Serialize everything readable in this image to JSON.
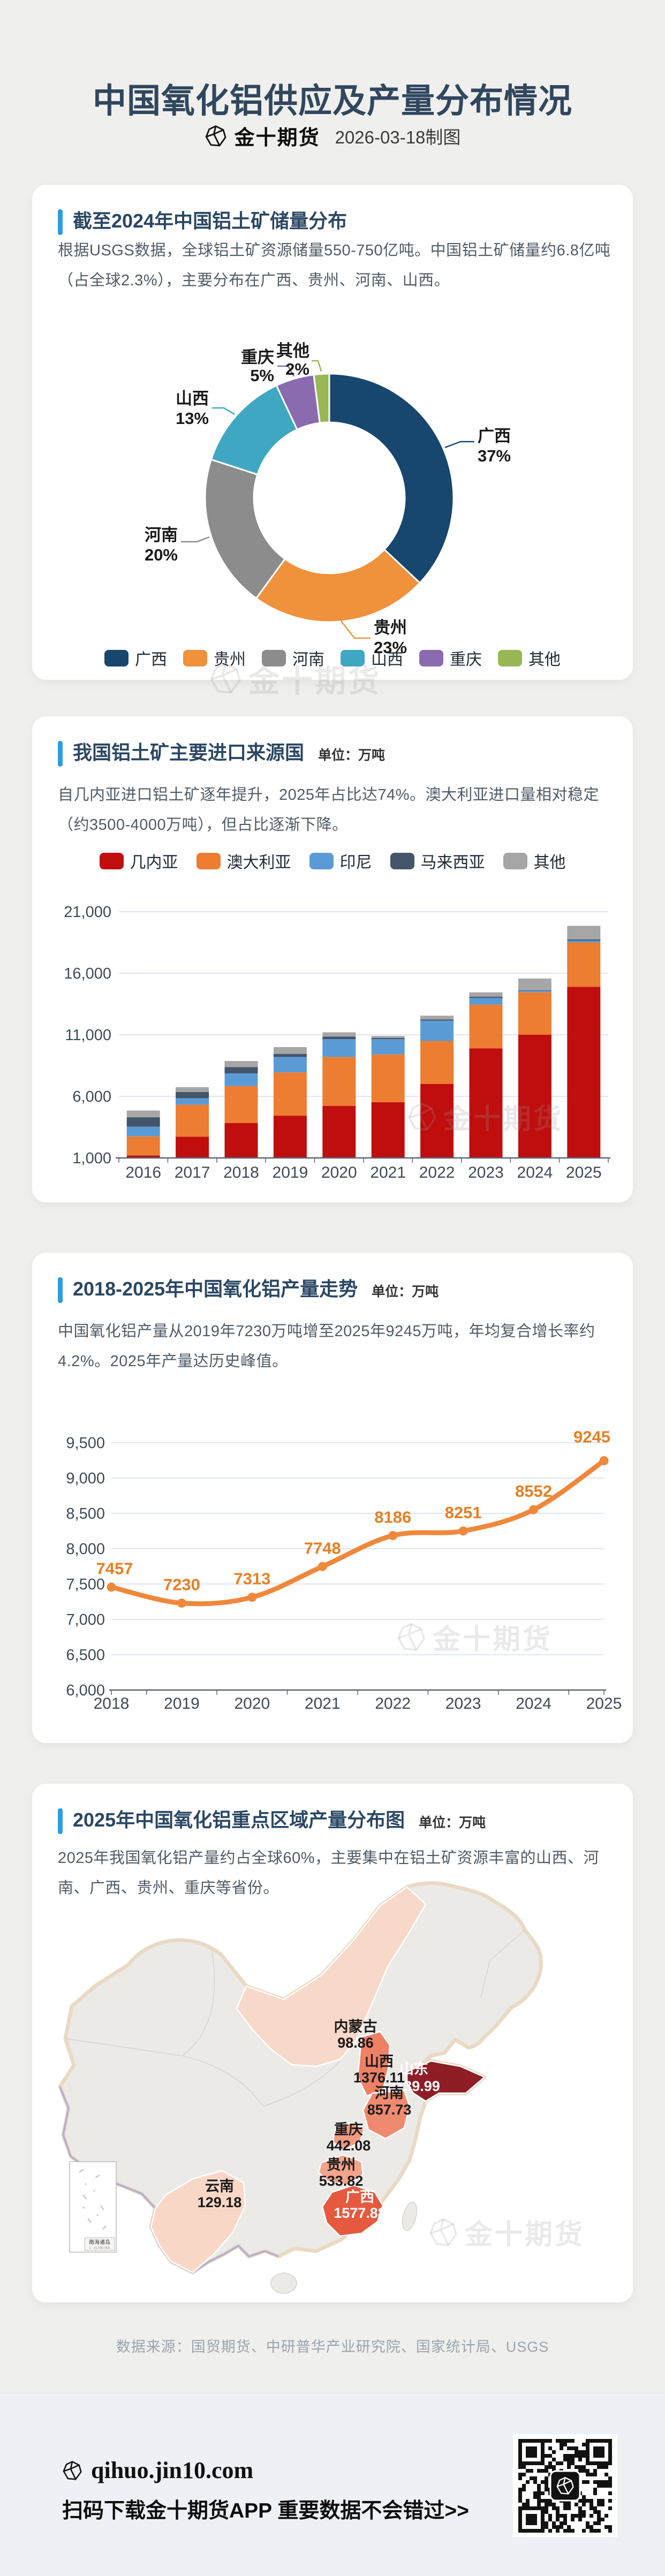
{
  "header": {
    "title": "中国氧化铝供应及产量分布情况",
    "brand": "金十期货",
    "date_note": "2026-03-18制图"
  },
  "watermark_text": "金十期货",
  "source_note": "数据来源：国贸期货、中研普华产业研究院、国家统计局、USGS",
  "footer": {
    "site": "qihuo.jin10.com",
    "cta": "扫码下载金十期货APP 重要数据不会错过>>"
  },
  "cards": {
    "reserves": {
      "title": "截至2024年中国铝土矿储量分布",
      "body": "根据USGS数据，全球铝土矿资源储量550-750亿吨。中国铝土矿储量约6.8亿吨（占全球2.3%），主要分布在广西、贵州、河南、山西。"
    },
    "imports": {
      "title": "我国铝土矿主要进口来源国",
      "unit": "单位：万吨",
      "body": "自几内亚进口铝土矿逐年提升，2025年占比达74%。澳大利亚进口量相对稳定（约3500-4000万吨），但占比逐渐下降。"
    },
    "production": {
      "title": "2018-2025年中国氧化铝产量走势",
      "unit": "单位：万吨",
      "body": "中国氧化铝产量从2019年7230万吨增至2025年9245万吨，年均复合增长率约4.2%。2025年产量达历史峰值。"
    },
    "map": {
      "title": "2025年中国氧化铝重点区域产量分布图",
      "unit": "单位：万吨",
      "body": "2025年我国氧化铝产量约占全球60%，主要集中在铝土矿资源丰富的山西、河南、广西、贵州、重庆等省份。",
      "inset_caption": "南海诸岛"
    }
  },
  "chart_data": [
    {
      "id": "bauxite_reserves_share",
      "type": "pie",
      "title": "截至2024年中国铝土矿储量分布",
      "labels": [
        "广西",
        "贵州",
        "河南",
        "山西",
        "重庆",
        "其他"
      ],
      "values": [
        37,
        23,
        20,
        13,
        5,
        2
      ],
      "unit": "%",
      "colors": [
        "#17466F",
        "#F0913C",
        "#8C8C8C",
        "#3FA7C2",
        "#8B6BB0",
        "#97B855"
      ],
      "donut": true
    },
    {
      "id": "bauxite_import_sources",
      "type": "bar",
      "stacked": true,
      "title": "我国铝土矿主要进口来源国",
      "unit": "万吨",
      "categories": [
        "2016",
        "2017",
        "2018",
        "2019",
        "2020",
        "2021",
        "2022",
        "2023",
        "2024",
        "2025"
      ],
      "series": [
        {
          "name": "几内亚",
          "color": "#C00D0D",
          "values": [
            1200,
            2720,
            3840,
            4430,
            5230,
            5520,
            7000,
            9900,
            11000,
            14900
          ]
        },
        {
          "name": "澳大利亚",
          "color": "#ED7D31",
          "values": [
            1550,
            2610,
            2990,
            3520,
            3970,
            3880,
            3500,
            3550,
            3450,
            3600
          ]
        },
        {
          "name": "印尼",
          "color": "#5B9BD5",
          "values": [
            790,
            520,
            1040,
            1250,
            1450,
            1250,
            1650,
            550,
            120,
            150
          ]
        },
        {
          "name": "马来西亚",
          "color": "#44546A",
          "values": [
            760,
            510,
            500,
            250,
            200,
            100,
            100,
            100,
            50,
            100
          ]
        },
        {
          "name": "其他",
          "color": "#A6A6A6",
          "values": [
            550,
            390,
            500,
            550,
            350,
            150,
            300,
            350,
            950,
            1100
          ]
        }
      ],
      "ylim": [
        1000,
        21000
      ],
      "yticks": [
        1000,
        6000,
        11000,
        16000,
        21000
      ],
      "values_note": "segment values estimated from chart pixels"
    },
    {
      "id": "alumina_production_trend",
      "type": "line",
      "title": "2018-2025年中国氧化铝产量走势",
      "unit": "万吨",
      "x": [
        "2018",
        "2019",
        "2020",
        "2021",
        "2022",
        "2023",
        "2024",
        "2025"
      ],
      "values": [
        7457,
        7230,
        7313,
        7748,
        8186,
        8251,
        8552,
        9245
      ],
      "color": "#F0883C",
      "ylim": [
        6000,
        9500
      ],
      "ytick_step": 500
    },
    {
      "id": "alumina_regional_production_2025",
      "type": "map",
      "title": "2025年中国氧化铝重点区域产量分布图",
      "unit": "万吨",
      "regions": [
        {
          "name": "山东",
          "value": "3139.99",
          "color": "#8E1D26"
        },
        {
          "name": "广西",
          "value": "1577.88",
          "color": "#E5593F"
        },
        {
          "name": "山西",
          "value": "1376.11",
          "color": "#EE8066"
        },
        {
          "name": "河南",
          "value": "857.73",
          "color": "#EF8A70"
        },
        {
          "name": "贵州",
          "value": "533.82",
          "color": "#F3A48D"
        },
        {
          "name": "重庆",
          "value": "442.08",
          "color": "#F29A82"
        },
        {
          "name": "云南",
          "value": "129.18",
          "color": "#F9D7C7"
        },
        {
          "name": "内蒙古",
          "value": "98.86",
          "color": "#F8D8C8"
        }
      ]
    }
  ]
}
